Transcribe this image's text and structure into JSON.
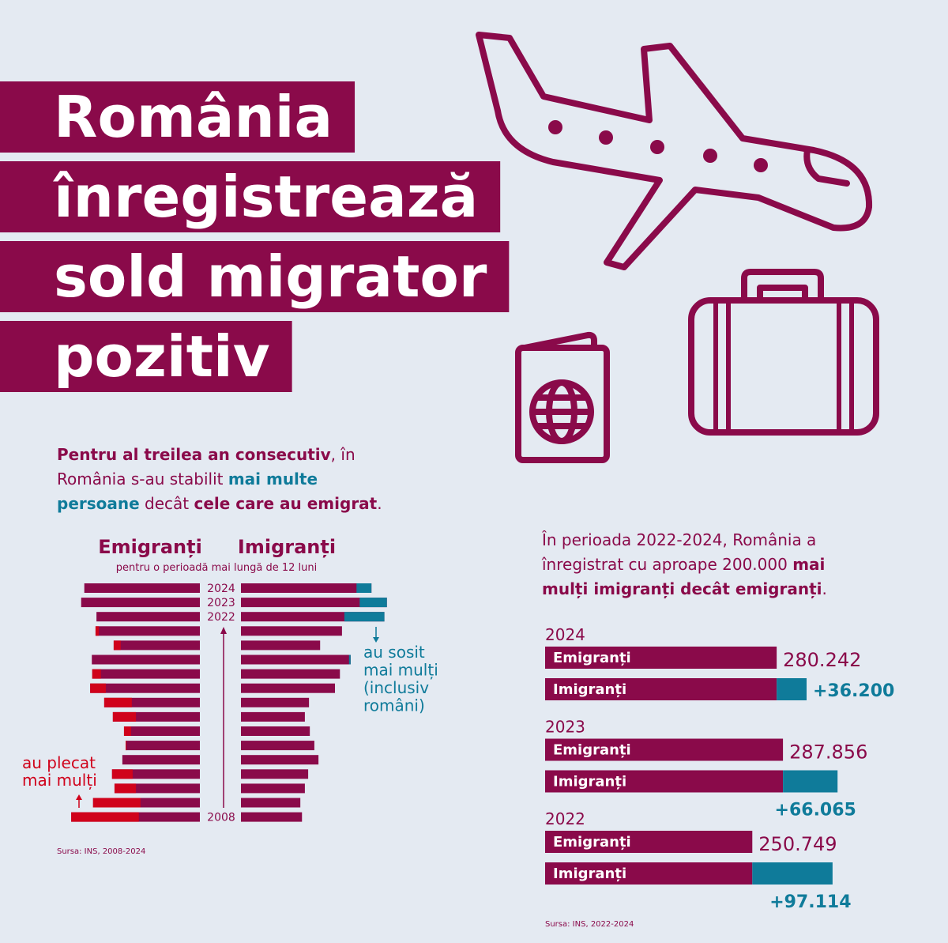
{
  "header": {
    "title_lines": [
      "România",
      "înregistrează",
      "sold migrator",
      "pozitiv"
    ]
  },
  "intro": {
    "lines": [
      [
        {
          "t": "Pentru al treilea an consecutiv",
          "s": "bold"
        },
        {
          "t": ", în",
          "s": "normal"
        }
      ],
      [
        {
          "t": "România s-au stabilit ",
          "s": "normal"
        },
        {
          "t": "mai multe",
          "s": "accent"
        }
      ],
      [
        {
          "t": "persoane",
          "s": "accent"
        },
        {
          "t": " decât ",
          "s": "normal"
        },
        {
          "t": "cele care au emigrat",
          "s": "bold"
        },
        {
          "t": ".",
          "s": "normal"
        }
      ]
    ]
  },
  "chart_data": [
    {
      "type": "butterfly",
      "subtitle": "pentru o perioadă mai lungă de 12 luni",
      "categories": [
        "2024",
        "2023",
        "2022",
        null,
        null,
        null,
        null,
        null,
        null,
        null,
        null,
        null,
        null,
        null,
        null,
        null,
        "2008"
      ],
      "series": [
        {
          "name": "Emigranți",
          "color": "#8a0a4a",
          "excess_color": "#d0021b",
          "values": [
            280242,
            287856,
            250749,
            253000,
            209000,
            262000,
            261000,
            266000,
            232000,
            211000,
            184000,
            180000,
            188000,
            213000,
            207000,
            259000,
            312000
          ]
        },
        {
          "name": "Imigranți",
          "color": "#8a0a4a",
          "excess_color": "#0f7b9a",
          "values": [
            316442,
            353921,
            347863,
            245000,
            192000,
            266000,
            240000,
            228000,
            165000,
            155000,
            167000,
            178000,
            188000,
            163000,
            155000,
            144000,
            148000
          ]
        }
      ],
      "annotations": {
        "arrived": [
          "au sosit",
          "mai mulți",
          "(inclusiv",
          "români)"
        ],
        "left": [
          "au plecat",
          "mai mulți"
        ]
      },
      "source": "Sursa: INS, 2008-2024"
    },
    {
      "type": "stacked-bar",
      "intro": {
        "lines": [
          [
            {
              "t": "În perioada 2022-2024, România a",
              "s": "normal"
            }
          ],
          [
            {
              "t": "înregistrat cu aproape 200.000 ",
              "s": "normal"
            },
            {
              "t": "mai",
              "s": "bold"
            }
          ],
          [
            {
              "t": "mulți imigranți decât emigranți",
              "s": "bold"
            },
            {
              "t": ".",
              "s": "normal"
            }
          ]
        ]
      },
      "categories": [
        "2024",
        "2023",
        "2022"
      ],
      "series": [
        {
          "name": "Emigranți",
          "color": "#8a0a4a",
          "values": [
            280242,
            287856,
            250749
          ],
          "value_labels": [
            "280.242",
            "287.856",
            "250.749"
          ]
        },
        {
          "name": "Imigranți",
          "color": "#0f7b9a",
          "base_color": "#8a0a4a",
          "values": [
            36200,
            66065,
            97114
          ],
          "value_labels": [
            "+36.200",
            "+66.065",
            "+97.114"
          ]
        }
      ],
      "source": "Sursa: INS, 2022-2024"
    }
  ]
}
